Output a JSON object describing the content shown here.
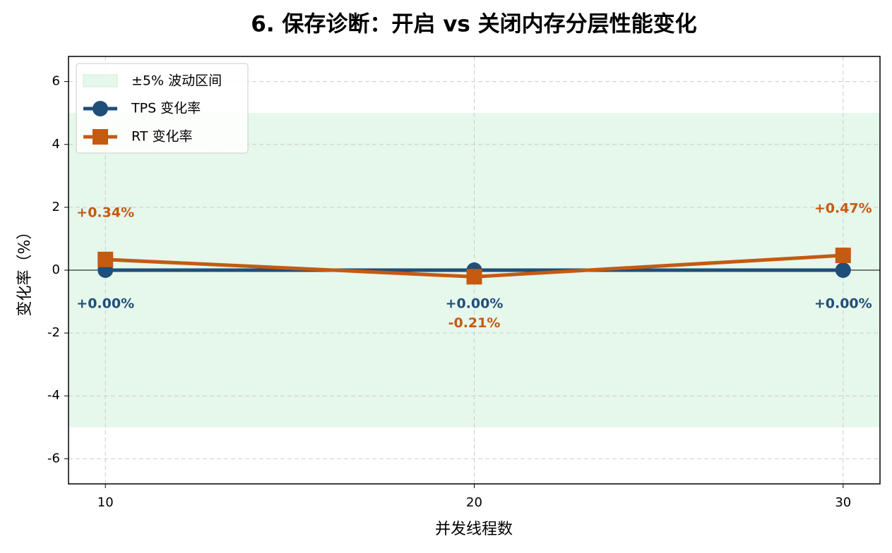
{
  "chart_data": {
    "type": "line",
    "title": "6. 保存诊断：开启 vs 关闭内存分层性能变化",
    "xlabel": "并发线程数",
    "ylabel": "变化率（%）",
    "x": [
      10,
      20,
      30
    ],
    "series": [
      {
        "name": "TPS 变化率",
        "color": "#1f4e79",
        "marker": "circle",
        "values": [
          0,
          0,
          0
        ],
        "value_labels": [
          "+0.00%",
          "+0.00%",
          "+0.00%"
        ]
      },
      {
        "name": "RT 变化率",
        "color": "#c55a11",
        "marker": "square",
        "values": [
          0.34,
          -0.21,
          0.47
        ],
        "value_labels": [
          "+0.34%",
          "-0.21%",
          "+0.47%"
        ]
      }
    ],
    "band": {
      "name": "±5% 波动区间",
      "range": [
        -5,
        5
      ],
      "color": "#e6f7ec"
    },
    "hline": 0,
    "xlim": [
      9,
      31
    ],
    "ylim": [
      -6.8,
      6.8
    ],
    "xticks": [
      10,
      20,
      30
    ],
    "yticks": [
      -6,
      -4,
      -2,
      0,
      2,
      4,
      6
    ],
    "grid": true,
    "legend": "upper left"
  }
}
